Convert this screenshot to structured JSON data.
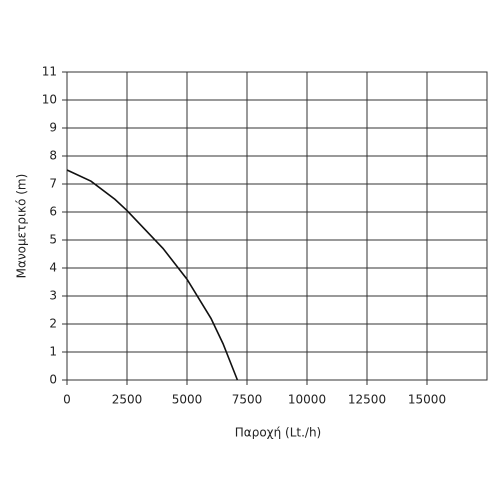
{
  "chart_data": {
    "type": "line",
    "x_label": "Παροχή (Lt./h)",
    "y_label": "Μανομετρικό  (m)",
    "x": [
      0,
      1000,
      2000,
      2500,
      3000,
      4000,
      5000,
      6000,
      6500,
      7100
    ],
    "values": [
      7.5,
      7.1,
      6.45,
      6.05,
      5.6,
      4.7,
      3.6,
      2.2,
      1.3,
      0
    ],
    "color": "#111111",
    "xlim": [
      0,
      17500
    ],
    "xticks": [
      0,
      2500,
      5000,
      7500,
      10000,
      12500,
      15000
    ],
    "ylim": [
      0,
      11
    ],
    "yticks": [
      0,
      1,
      2,
      3,
      4,
      5,
      6,
      7,
      8,
      9,
      10,
      11
    ],
    "grid": true
  }
}
